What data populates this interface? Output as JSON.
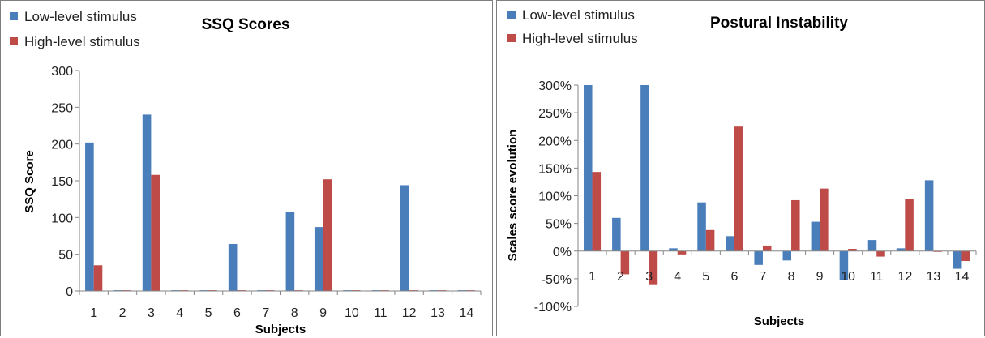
{
  "chart_data": [
    {
      "type": "bar",
      "title": "SSQ Scores",
      "xlabel": "Subjects",
      "ylabel": "SSQ Score",
      "categories": [
        "1",
        "2",
        "3",
        "4",
        "5",
        "6",
        "7",
        "8",
        "9",
        "10",
        "11",
        "12",
        "13",
        "14"
      ],
      "series": [
        {
          "name": "Low-level stimulus",
          "color": "#4a7ebb",
          "values": [
            202,
            1,
            240,
            1,
            1,
            64,
            1,
            108,
            87,
            1,
            1,
            144,
            1,
            1
          ]
        },
        {
          "name": "High-level stimulus",
          "color": "#be4b48",
          "values": [
            35,
            1,
            158,
            1,
            1,
            1,
            1,
            1,
            152,
            1,
            1,
            1,
            1,
            1
          ]
        }
      ],
      "ylim": [
        0,
        300
      ],
      "yticks": [
        0,
        50,
        100,
        150,
        200,
        250,
        300
      ],
      "ytick_labels": [
        "0",
        "50",
        "100",
        "150",
        "200",
        "250",
        "300"
      ],
      "legend": "top-left",
      "grid": false
    },
    {
      "type": "bar",
      "title": "Postural Instability",
      "xlabel": "Subjects",
      "ylabel": "Scales score evolution",
      "categories": [
        "1",
        "2",
        "3",
        "4",
        "5",
        "6",
        "7",
        "8",
        "9",
        "10",
        "11",
        "12",
        "13",
        "14"
      ],
      "series": [
        {
          "name": "Low-level stimulus",
          "color": "#4a7ebb",
          "values": [
            300,
            60,
            300,
            5,
            88,
            27,
            -25,
            -17,
            53,
            -52,
            20,
            5,
            128,
            -32
          ]
        },
        {
          "name": "High-level stimulus",
          "color": "#be4b48",
          "values": [
            143,
            -42,
            -60,
            -6,
            38,
            225,
            10,
            92,
            113,
            4,
            -10,
            94,
            0,
            -18
          ]
        }
      ],
      "ylim": [
        -100,
        300
      ],
      "yticks": [
        -100,
        -50,
        0,
        50,
        100,
        150,
        200,
        250,
        300
      ],
      "ytick_labels": [
        "-100%",
        "-50%",
        "0%",
        "50%",
        "100%",
        "150%",
        "200%",
        "250%",
        "300%"
      ],
      "legend": "top-left",
      "grid": false
    }
  ]
}
